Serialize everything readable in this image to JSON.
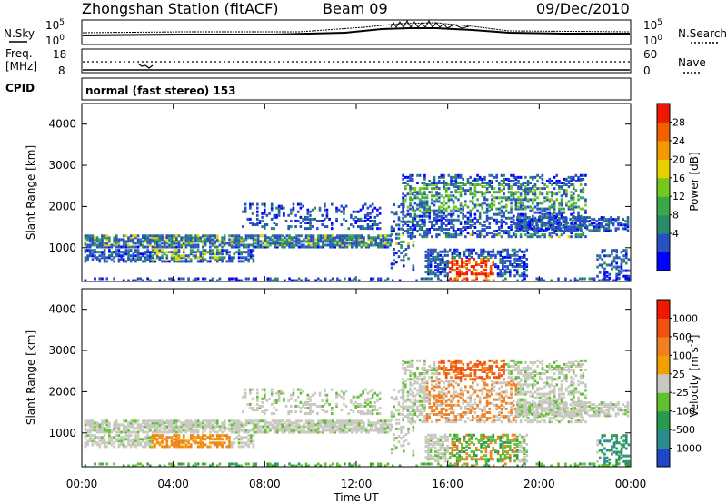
{
  "header": {
    "title": "Zhongshan Station (fitACF)",
    "beam": "Beam 09",
    "date": "09/Dec/2010"
  },
  "noise_panel": {
    "left_label": "N.Sky",
    "left_ticks": [
      "10^5",
      "10^0"
    ],
    "right_ticks": [
      "10^5",
      "10^0"
    ],
    "right_label": "N.Search"
  },
  "freq_panel": {
    "left_label_1": "Freq.",
    "left_label_2": "[MHz]",
    "left_ticks": [
      "18",
      "8"
    ],
    "right_ticks": [
      "60",
      "0"
    ],
    "right_label": "Nave"
  },
  "cpid_panel": {
    "label": "CPID",
    "program": "normal (fast stereo) 153"
  },
  "chart_data": [
    {
      "type": "heatmap",
      "quantity": "Power",
      "ylabel": "Slant Range [km]",
      "ylim": [
        180,
        4500
      ],
      "yticks": [
        "4000",
        "3000",
        "2000",
        "1000"
      ],
      "colorbar_label": "Power [dB]",
      "colorbar_ticks": [
        "28",
        "24",
        "20",
        "16",
        "12",
        "8",
        "4"
      ],
      "colorbar_colors": [
        "#0000ff",
        "#2850c0",
        "#2a8a6a",
        "#3aa848",
        "#74c820",
        "#e8d000",
        "#f09a00",
        "#f06000",
        "#f01800"
      ]
    },
    {
      "type": "heatmap",
      "quantity": "Velocity",
      "ylabel": "Slant Range [km]",
      "ylim": [
        180,
        4500
      ],
      "yticks": [
        "4000",
        "3000",
        "2000",
        "1000"
      ],
      "colorbar_label": "Velocity [m s^-1]",
      "colorbar_ticks": [
        "1000",
        "500",
        "100",
        "25",
        "-25",
        "-100",
        "-500",
        "-1000"
      ],
      "colorbar_colors": [
        "#2046c8",
        "#2a8c8c",
        "#2a9a50",
        "#60c030",
        "#c8c8c0",
        "#f0a000",
        "#f08020",
        "#f05010",
        "#f01800"
      ]
    }
  ],
  "x_axis": {
    "label": "Time UT",
    "ticks": [
      "00:00",
      "04:00",
      "08:00",
      "12:00",
      "16:00",
      "20:00",
      "00:00"
    ]
  }
}
